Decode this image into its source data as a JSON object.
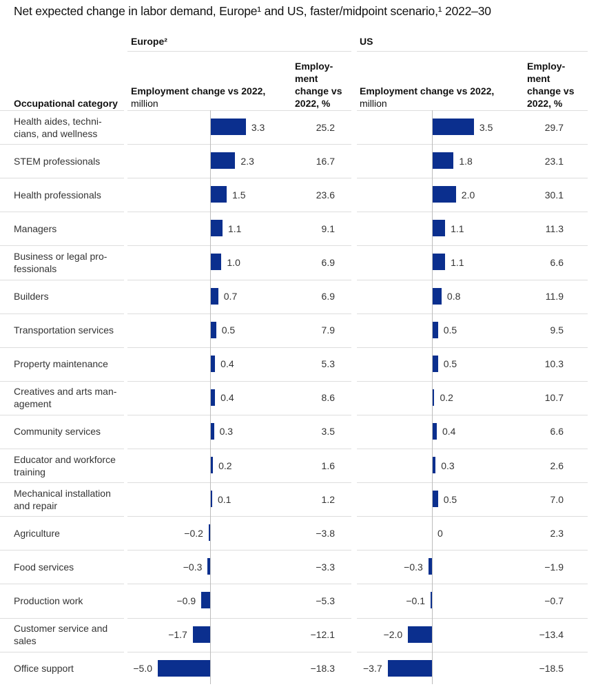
{
  "chart_data": {
    "type": "bar",
    "title": "Net expected change in labor demand, Europe¹ and US, faster/midpoint scenario,¹ 2022–30",
    "category_header": "Occupational category",
    "regions": [
      {
        "name": "Europe²",
        "bar_header": "Employment change vs 2022,",
        "bar_unit": "million",
        "pct_header": "Employ-\nment\nchange vs\n2022, %"
      },
      {
        "name": "US",
        "bar_header": "Employment change vs 2022,",
        "bar_unit": "million",
        "pct_header": "Employ-\nment\nchange vs\n2022, %"
      }
    ],
    "categories": [
      "Health aides, techni-\ncians, and wellness",
      "STEM professionals",
      "Health professionals",
      "Managers",
      "Business or legal pro-\nfessionals",
      "Builders",
      "Transportation services",
      "Property maintenance",
      "Creatives and arts man-\nagement",
      "Community services",
      "Educator and workforce\ntraining",
      "Mechanical installation\nand repair",
      "Agriculture",
      "Food services",
      "Production work",
      "Customer service and\nsales",
      "Office support"
    ],
    "series": [
      {
        "name": "Europe² employment change, million",
        "values": [
          3.3,
          2.3,
          1.5,
          1.1,
          1.0,
          0.7,
          0.5,
          0.4,
          0.4,
          0.3,
          0.2,
          0.1,
          -0.2,
          -0.3,
          -0.9,
          -1.7,
          -5.0
        ]
      },
      {
        "name": "Europe² employment change, %",
        "values": [
          25.2,
          16.7,
          23.6,
          9.1,
          6.9,
          6.9,
          7.9,
          5.3,
          8.6,
          3.5,
          1.6,
          1.2,
          -3.8,
          -3.3,
          -5.3,
          -12.1,
          -18.3
        ]
      },
      {
        "name": "US employment change, million",
        "values": [
          3.5,
          1.8,
          2.0,
          1.1,
          1.1,
          0.8,
          0.5,
          0.5,
          0.2,
          0.4,
          0.3,
          0.5,
          0,
          -0.3,
          -0.1,
          -2.0,
          -3.7
        ]
      },
      {
        "name": "US employment change, %",
        "values": [
          29.7,
          23.1,
          30.1,
          11.3,
          6.6,
          11.9,
          9.5,
          10.3,
          10.7,
          6.6,
          2.6,
          7.0,
          2.3,
          -1.9,
          -0.7,
          -13.4,
          -18.5
        ]
      }
    ],
    "bar_color": "#0B2F8E",
    "grid": false
  }
}
